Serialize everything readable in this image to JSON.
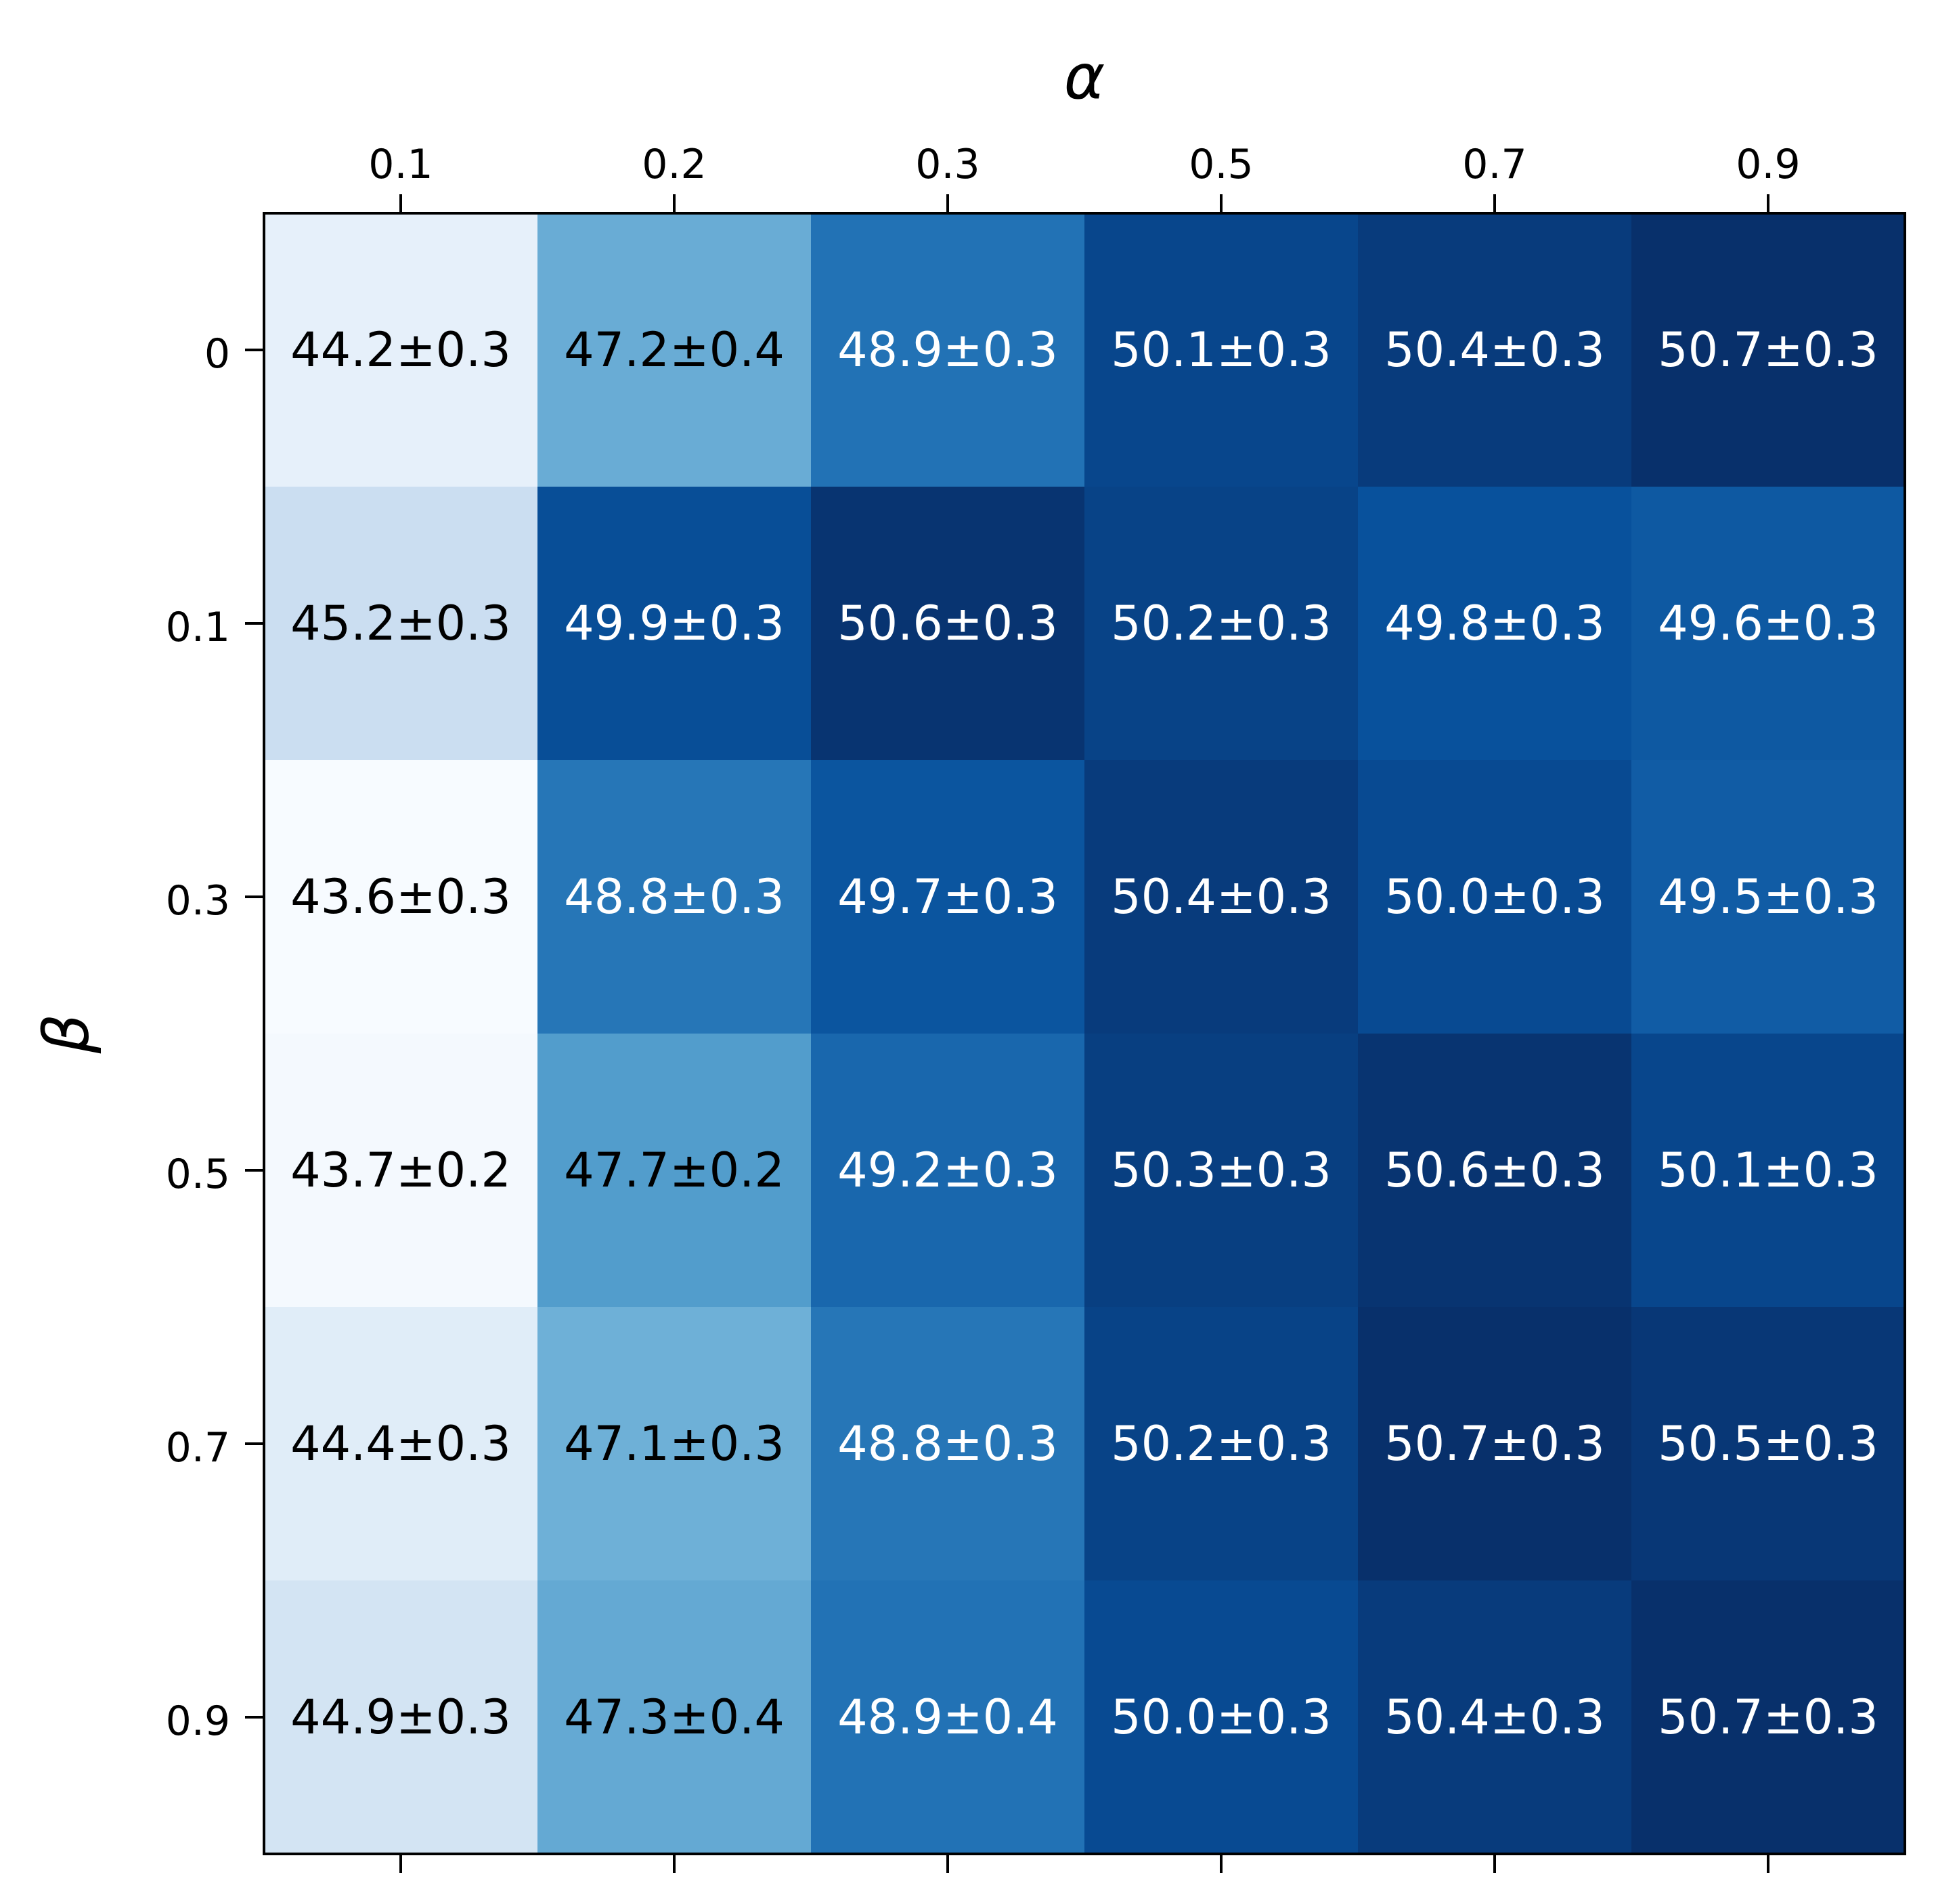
{
  "chart_data": {
    "type": "heatmap",
    "xlabel": "α",
    "ylabel": "β",
    "x_position": "top",
    "x_categories": [
      "0.1",
      "0.2",
      "0.3",
      "0.5",
      "0.7",
      "0.9"
    ],
    "y_categories": [
      "0",
      "0.1",
      "0.3",
      "0.5",
      "0.7",
      "0.9"
    ],
    "colormap": "Blues",
    "color_range": [
      43.6,
      50.7
    ],
    "values": [
      [
        44.2,
        47.2,
        48.9,
        50.1,
        50.4,
        50.7
      ],
      [
        45.2,
        49.9,
        50.6,
        50.2,
        49.8,
        49.6
      ],
      [
        43.6,
        48.8,
        49.7,
        50.4,
        50.0,
        49.5
      ],
      [
        43.7,
        47.7,
        49.2,
        50.3,
        50.6,
        50.1
      ],
      [
        44.4,
        47.1,
        48.8,
        50.2,
        50.7,
        50.5
      ],
      [
        44.9,
        47.3,
        48.9,
        50.0,
        50.4,
        50.7
      ]
    ],
    "errors": [
      [
        0.3,
        0.4,
        0.3,
        0.3,
        0.3,
        0.3
      ],
      [
        0.3,
        0.3,
        0.3,
        0.3,
        0.3,
        0.3
      ],
      [
        0.3,
        0.3,
        0.3,
        0.3,
        0.3,
        0.3
      ],
      [
        0.2,
        0.2,
        0.3,
        0.3,
        0.3,
        0.3
      ],
      [
        0.3,
        0.3,
        0.3,
        0.3,
        0.3,
        0.3
      ],
      [
        0.3,
        0.4,
        0.4,
        0.3,
        0.3,
        0.3
      ]
    ],
    "labels": [
      [
        "44.2±0.3",
        "47.2±0.4",
        "48.9±0.3",
        "50.1±0.3",
        "50.4±0.3",
        "50.7±0.3"
      ],
      [
        "45.2±0.3",
        "49.9±0.3",
        "50.6±0.3",
        "50.2±0.3",
        "49.8±0.3",
        "49.6±0.3"
      ],
      [
        "43.6±0.3",
        "48.8±0.3",
        "49.7±0.3",
        "50.4±0.3",
        "50.0±0.3",
        "49.5±0.3"
      ],
      [
        "43.7±0.2",
        "47.7±0.2",
        "49.2±0.3",
        "50.3±0.3",
        "50.6±0.3",
        "50.1±0.3"
      ],
      [
        "44.4±0.3",
        "47.1±0.3",
        "48.8±0.3",
        "50.2±0.3",
        "50.7±0.3",
        "50.5±0.3"
      ],
      [
        "44.9±0.3",
        "47.3±0.4",
        "48.9±0.4",
        "50.0±0.3",
        "50.4±0.3",
        "50.7±0.3"
      ]
    ]
  }
}
